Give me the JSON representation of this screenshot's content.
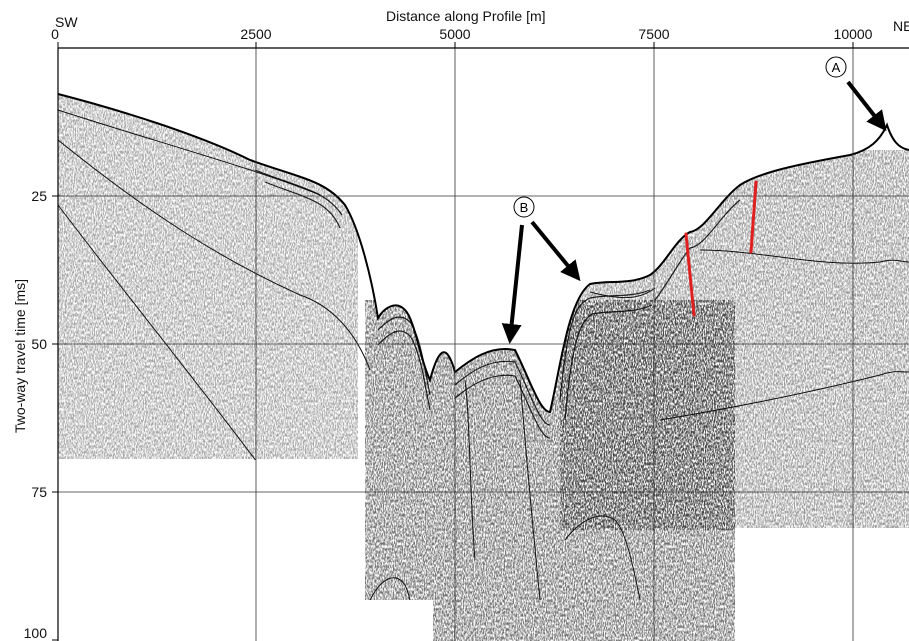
{
  "figure": {
    "xlabel": "Distance along Profile [m]",
    "ylabel": "Two-way travel time [ms]",
    "left_dir": "SW",
    "right_dir": "NE",
    "xticks": [
      "0",
      "2500",
      "5000",
      "7500",
      "10000"
    ],
    "yticks": [
      "25",
      "50",
      "75",
      "100"
    ],
    "x_range": [
      0,
      10650
    ],
    "y_range": [
      0,
      100
    ],
    "markers": [
      {
        "label": "A"
      },
      {
        "label": "B"
      }
    ],
    "colors": {
      "reflector": "#000000",
      "fault": "#e0201f",
      "grid": "#333333"
    }
  }
}
